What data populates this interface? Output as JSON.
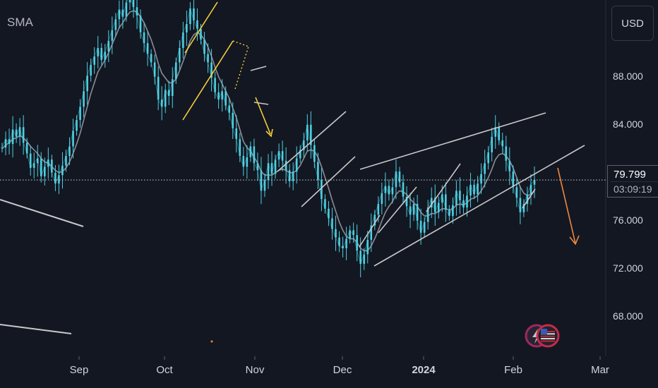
{
  "indicator_label": "SMA",
  "currency_button": "USD",
  "last_price": "79.799",
  "countdown": "03:09:19",
  "colors": {
    "background": "#131722",
    "candle": "#4dd0e1",
    "sma": "#8a8d95",
    "trendline": "#c8c8c8",
    "yellow": "#f5d03b",
    "orange": "#f0883e"
  },
  "icons": [
    "lightning-icon",
    "us-flag-icon"
  ],
  "chart_data": {
    "type": "line",
    "series": [
      {
        "values": [
          82.5,
          83.2,
          82.8,
          84,
          83.4,
          84.2,
          82.9,
          82,
          80.8,
          81.2,
          81.6,
          80.1,
          80.9,
          81.5,
          80.4,
          79.5,
          80.2,
          81,
          81.8,
          82.6,
          83.9,
          84.8,
          85.9,
          87.2,
          88.5,
          89.4,
          90.1,
          90.8,
          89.8,
          90.5,
          91.4,
          92.3,
          93.2,
          94,
          93.4,
          94.6,
          95.1,
          94.2,
          93.5,
          92.1,
          91.2,
          90.3,
          89.6,
          88.4,
          86.5,
          85.9,
          87.3,
          86.8,
          88.2,
          89.6,
          90.8,
          92.1,
          92.8,
          94.1,
          93.1,
          92.4,
          91.5,
          90.3,
          89.6,
          88.3,
          87.1,
          86.5,
          87.2,
          86,
          85.4,
          84.1,
          83.2,
          81.8,
          80.9,
          81.7,
          82.6,
          81.2,
          80.6,
          78.9,
          79.8,
          81.2,
          80.3,
          81.5,
          82.2,
          81.4,
          80.6,
          79.7,
          80.5,
          81.6,
          82.3,
          83.1,
          84.4,
          82.7,
          81.3,
          79.8,
          78.2,
          77.4,
          76.6,
          75.7,
          75,
          74.3,
          74.1,
          74.9,
          75.6,
          75.2,
          73.9,
          72.8,
          73.6,
          74.8,
          76,
          76.9,
          77.8,
          78.7,
          79.3,
          78.6,
          79.2,
          80.5,
          79.6,
          78.4,
          77.6,
          76.9,
          77.8,
          76.4,
          75.4,
          76.3,
          77.5,
          78.3,
          77.1,
          77.9,
          78.6,
          77.3,
          76.8,
          77.7,
          78.9,
          78.1,
          77.5,
          78.5,
          79.4,
          78.6,
          79.5,
          80.3,
          81.2,
          82.1,
          83.4,
          84.2,
          83.1,
          82.6,
          81.4,
          80.5,
          79.2,
          78.3,
          77.1,
          77.8,
          78.6,
          79.4,
          79.8
        ]
      },
      {
        "values": [
          82.4,
          82.7,
          82.9,
          83.2,
          83.3,
          83.5,
          83.3,
          83,
          82.6,
          82.3,
          82,
          81.6,
          81.3,
          81.2,
          80.9,
          80.6,
          80.4,
          80.5,
          80.8,
          81.3,
          82,
          82.8,
          83.7,
          84.8,
          85.9,
          87,
          87.9,
          88.8,
          89.3,
          89.8,
          90.4,
          91.1,
          91.8,
          92.5,
          92.9,
          93.4,
          93.8,
          93.9,
          93.8,
          93.4,
          92.9,
          92.2,
          91.5,
          90.6,
          89.5,
          88.7,
          88.3,
          87.9,
          87.9,
          88.2,
          88.9,
          89.7,
          90.5,
          91.4,
          91.9,
          92.1,
          91.9,
          91.5,
          90.9,
          90.1,
          89.2,
          88.4,
          87.8,
          87.2,
          86.6,
          85.8,
          85,
          84,
          83,
          82.5,
          82.2,
          81.7,
          81.2,
          80.5,
          80.2,
          80.2,
          80.2,
          80.4,
          80.6,
          80.7,
          80.6,
          80.4,
          80.4,
          80.6,
          81,
          81.6,
          82.2,
          82.3,
          82.2,
          81.7,
          80.9,
          80,
          79.1,
          78.1,
          77.2,
          76.3,
          75.6,
          75.1,
          74.9,
          74.9,
          74.6,
          74.1,
          73.9,
          73.9,
          74.3,
          74.9,
          75.6,
          76.4,
          77.1,
          77.6,
          78,
          78.6,
          78.9,
          78.8,
          78.6,
          78.2,
          77.9,
          77.6,
          77.1,
          76.8,
          76.8,
          77,
          77,
          77.2,
          77.4,
          77.4,
          77.3,
          77.4,
          77.7,
          77.8,
          77.7,
          77.9,
          78.2,
          78.3,
          78.5,
          78.9,
          79.4,
          80,
          80.7,
          81.5,
          81.9,
          82,
          81.8,
          81.4,
          80.8,
          80,
          79.2,
          78.7,
          78.5,
          78.6,
          78.9
        ]
      }
    ],
    "x_ticks": [
      "Sep",
      "Oct",
      "Nov",
      "Dec",
      "2024",
      "Feb",
      "Mar"
    ],
    "y_ticks": [
      "88.000",
      "84.000",
      "80.000",
      "76.000",
      "72.000",
      "68.000"
    ],
    "ylim": [
      65.1,
      94.8
    ]
  }
}
